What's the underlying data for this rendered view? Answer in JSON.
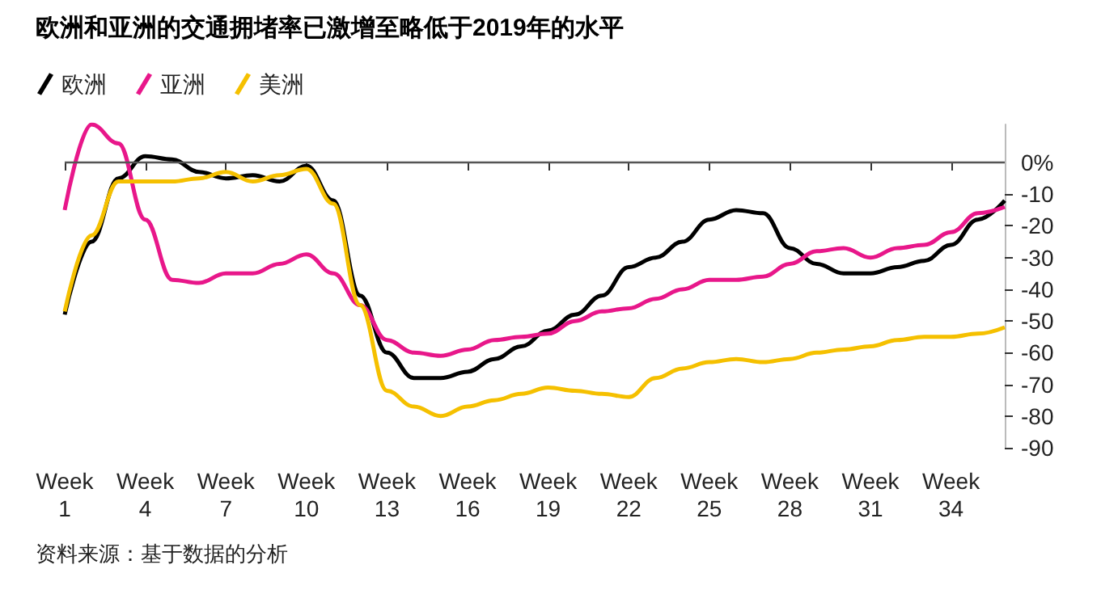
{
  "chart_data": {
    "type": "line",
    "title": "欧洲和亚洲的交通拥堵率已激增至略低于2019年的水平",
    "annotations": [
      "资料来源：基于数据的分析"
    ],
    "categories": [
      "Week\n1",
      null,
      null,
      "Week\n4",
      null,
      null,
      "Week\n7",
      null,
      null,
      "Week\n10",
      null,
      null,
      "Week\n13",
      null,
      null,
      "Week\n16",
      null,
      null,
      "Week\n19",
      null,
      null,
      "Week\n22",
      null,
      null,
      "Week\n25",
      null,
      null,
      "Week\n28",
      null,
      null,
      "Week\n31",
      null,
      null,
      "Week\n34",
      null,
      null
    ],
    "series": [
      {
        "name": "欧洲",
        "color": "#000000",
        "values": [
          -48,
          -25,
          -5,
          2,
          1,
          -3,
          -5,
          -4,
          -6,
          -1,
          -12,
          -42,
          -60,
          -68,
          -68,
          -66,
          -62,
          -58,
          -53,
          -48,
          -42,
          -33,
          -30,
          -25,
          -18,
          -15,
          -16,
          -27,
          -32,
          -35,
          -35,
          -33,
          -31,
          -26,
          -18,
          -12
        ]
      },
      {
        "name": "亚洲",
        "color": "#e8178a",
        "values": [
          -15,
          12,
          6,
          -18,
          -37,
          -38,
          -35,
          -35,
          -32,
          -29,
          -35,
          -45,
          -56,
          -60,
          -61,
          -59,
          -56,
          -55,
          -54,
          -50,
          -47,
          -46,
          -43,
          -40,
          -37,
          -37,
          -36,
          -32,
          -28,
          -27,
          -30,
          -27,
          -26,
          -22,
          -16,
          -14
        ]
      },
      {
        "name": "美洲",
        "color": "#f5c000",
        "values": [
          -47,
          -23,
          -6,
          -6,
          -6,
          -5,
          -3,
          -6,
          -4,
          -2,
          -13,
          -45,
          -72,
          -77,
          -80,
          -77,
          -75,
          -73,
          -71,
          -72,
          -73,
          -74,
          -68,
          -65,
          -63,
          -62,
          -63,
          -62,
          -60,
          -59,
          -58,
          -56,
          -55,
          -55,
          -54,
          -52
        ]
      }
    ],
    "ylim": [
      -90,
      12
    ],
    "yticks": [
      {
        "value": 0,
        "label": "0%"
      },
      -10,
      -20,
      -30,
      -40,
      -50,
      -60,
      -70,
      -80,
      -90
    ],
    "ref_lines": [
      {
        "axis": "y",
        "value": 0,
        "color": "#555555"
      }
    ],
    "grid": false,
    "legend": "top left",
    "marker": "none",
    "line_style": "solid"
  }
}
